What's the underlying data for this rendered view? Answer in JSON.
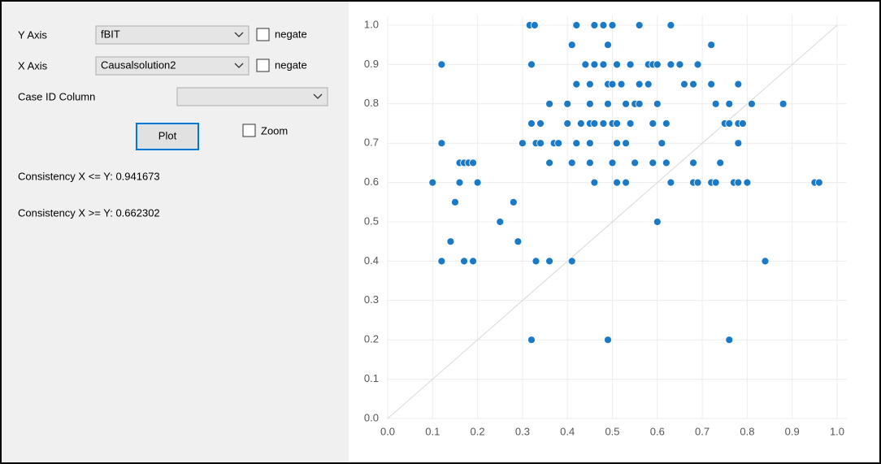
{
  "panel": {
    "y_axis_label": "Y Axis",
    "y_axis_value": "fBIT",
    "negate_y": "negate",
    "x_axis_label": "X Axis",
    "x_axis_value": "Causalsolution2",
    "negate_x": "negate",
    "case_id_label": "Case ID Column",
    "plot_button": "Plot",
    "zoom": "Zoom",
    "consistency_1": "Consistency X <= Y: 0.941673",
    "consistency_2": "Consistency X >= Y: 0.662302"
  },
  "chart_data": {
    "type": "scatter",
    "color": "#1a7ac8",
    "grid": true,
    "diagonal": true,
    "xlim": [
      0,
      1
    ],
    "ylim": [
      0,
      1
    ],
    "xticks": [
      {
        "value": 0,
        "label": "0.0"
      },
      0.1,
      0.2,
      0.3,
      0.4,
      0.5,
      0.6,
      0.7,
      0.8,
      0.9,
      {
        "value": 1,
        "label": "1.0"
      }
    ],
    "yticks": [
      {
        "value": 0,
        "label": "0.0"
      },
      0.1,
      0.2,
      0.3,
      0.4,
      0.5,
      0.6,
      0.7,
      0.8,
      0.9,
      {
        "value": 1,
        "label": "1.0"
      }
    ],
    "x": [
      0.316,
      0.327,
      0.42,
      0.46,
      0.48,
      0.5,
      0.56,
      0.63,
      0.41,
      0.49,
      0.72,
      0.12,
      0.32,
      0.44,
      0.46,
      0.48,
      0.51,
      0.54,
      0.58,
      0.59,
      0.6,
      0.63,
      0.65,
      0.69,
      0.42,
      0.45,
      0.49,
      0.5,
      0.52,
      0.56,
      0.58,
      0.66,
      0.68,
      0.72,
      0.78,
      0.36,
      0.4,
      0.45,
      0.49,
      0.53,
      0.55,
      0.56,
      0.6,
      0.73,
      0.76,
      0.81,
      0.88,
      0.32,
      0.34,
      0.4,
      0.43,
      0.45,
      0.46,
      0.48,
      0.5,
      0.51,
      0.54,
      0.59,
      0.62,
      0.75,
      0.76,
      0.78,
      0.79,
      0.12,
      0.3,
      0.33,
      0.34,
      0.37,
      0.38,
      0.42,
      0.45,
      0.51,
      0.53,
      0.61,
      0.78,
      0.16,
      0.17,
      0.18,
      0.19,
      0.36,
      0.41,
      0.45,
      0.5,
      0.55,
      0.59,
      0.62,
      0.68,
      0.74,
      0.1,
      0.16,
      0.2,
      0.46,
      0.51,
      0.53,
      0.63,
      0.68,
      0.69,
      0.72,
      0.73,
      0.77,
      0.78,
      0.8,
      0.95,
      0.96,
      0.15,
      0.28,
      0.25,
      0.6,
      0.14,
      0.29,
      0.12,
      0.17,
      0.19,
      0.33,
      0.36,
      0.41,
      0.84,
      0.32,
      0.49,
      0.76
    ],
    "values": [
      1,
      1,
      1,
      1,
      1,
      1,
      1,
      1,
      0.95,
      0.95,
      0.95,
      0.9,
      0.9,
      0.9,
      0.9,
      0.9,
      0.9,
      0.9,
      0.9,
      0.9,
      0.9,
      0.9,
      0.9,
      0.9,
      0.85,
      0.85,
      0.85,
      0.85,
      0.85,
      0.85,
      0.85,
      0.85,
      0.85,
      0.85,
      0.85,
      0.8,
      0.8,
      0.8,
      0.8,
      0.8,
      0.8,
      0.8,
      0.8,
      0.8,
      0.8,
      0.8,
      0.8,
      0.75,
      0.75,
      0.75,
      0.75,
      0.75,
      0.75,
      0.75,
      0.75,
      0.75,
      0.75,
      0.75,
      0.75,
      0.75,
      0.75,
      0.75,
      0.75,
      0.7,
      0.7,
      0.7,
      0.7,
      0.7,
      0.7,
      0.7,
      0.7,
      0.7,
      0.7,
      0.7,
      0.7,
      0.65,
      0.65,
      0.65,
      0.65,
      0.65,
      0.65,
      0.65,
      0.65,
      0.65,
      0.65,
      0.65,
      0.65,
      0.65,
      0.6,
      0.6,
      0.6,
      0.6,
      0.6,
      0.6,
      0.6,
      0.6,
      0.6,
      0.6,
      0.6,
      0.6,
      0.6,
      0.6,
      0.6,
      0.6,
      0.55,
      0.55,
      0.5,
      0.5,
      0.45,
      0.45,
      0.4,
      0.4,
      0.4,
      0.4,
      0.4,
      0.4,
      0.4,
      0.2,
      0.2,
      0.2
    ]
  }
}
